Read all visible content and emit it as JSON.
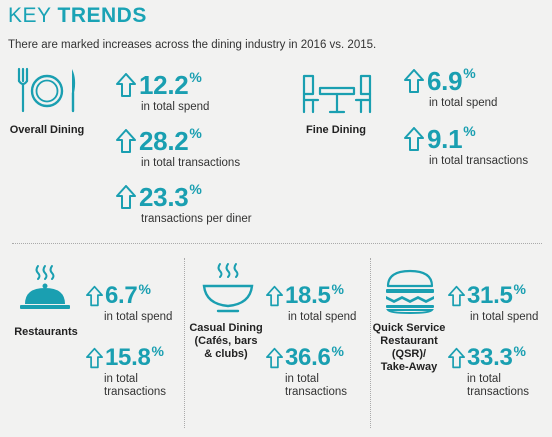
{
  "header": {
    "title_light": "KEY",
    "title_bold": "TRENDS",
    "subtitle": "There are marked increases across the dining industry in 2016 vs. 2015."
  },
  "colors": {
    "accent": "#1a9fb1",
    "text": "#2b2b2b",
    "background": "#f2f2f1"
  },
  "sections": {
    "overall_dining": {
      "label": "Overall Dining",
      "icon": "plate-cutlery-icon",
      "stats": [
        {
          "value": "12.2",
          "unit": "%",
          "desc": "in total spend"
        },
        {
          "value": "28.2",
          "unit": "%",
          "desc": "in total transactions"
        },
        {
          "value": "23.3",
          "unit": "%",
          "desc": "transactions per diner"
        }
      ]
    },
    "fine_dining": {
      "label": "Fine Dining",
      "icon": "table-chairs-icon",
      "stats": [
        {
          "value": "6.9",
          "unit": "%",
          "desc": "in total spend"
        },
        {
          "value": "9.1",
          "unit": "%",
          "desc": "in total transactions"
        }
      ]
    },
    "restaurants": {
      "label": "Restaurants",
      "icon": "cloche-icon",
      "stats": [
        {
          "value": "6.7",
          "unit": "%",
          "desc": "in total spend"
        },
        {
          "value": "15.8",
          "unit": "%",
          "desc_line1": "in total",
          "desc_line2": "transactions"
        }
      ]
    },
    "casual_dining": {
      "label_line1": "Casual Dining",
      "label_line2": "(Cafés, bars",
      "label_line3": "& clubs)",
      "icon": "steaming-bowl-icon",
      "stats": [
        {
          "value": "18.5",
          "unit": "%",
          "desc": "in total spend"
        },
        {
          "value": "36.6",
          "unit": "%",
          "desc_line1": "in total",
          "desc_line2": "transactions"
        }
      ]
    },
    "qsr": {
      "label_line1": "Quick Service",
      "label_line2": "Restaurant",
      "label_line3": "(QSR)/",
      "label_line4": "Take-Away",
      "icon": "burger-icon",
      "stats": [
        {
          "value": "31.5",
          "unit": "%",
          "desc": "in total spend"
        },
        {
          "value": "33.3",
          "unit": "%",
          "desc_line1": "in total",
          "desc_line2": "transactions"
        }
      ]
    }
  }
}
